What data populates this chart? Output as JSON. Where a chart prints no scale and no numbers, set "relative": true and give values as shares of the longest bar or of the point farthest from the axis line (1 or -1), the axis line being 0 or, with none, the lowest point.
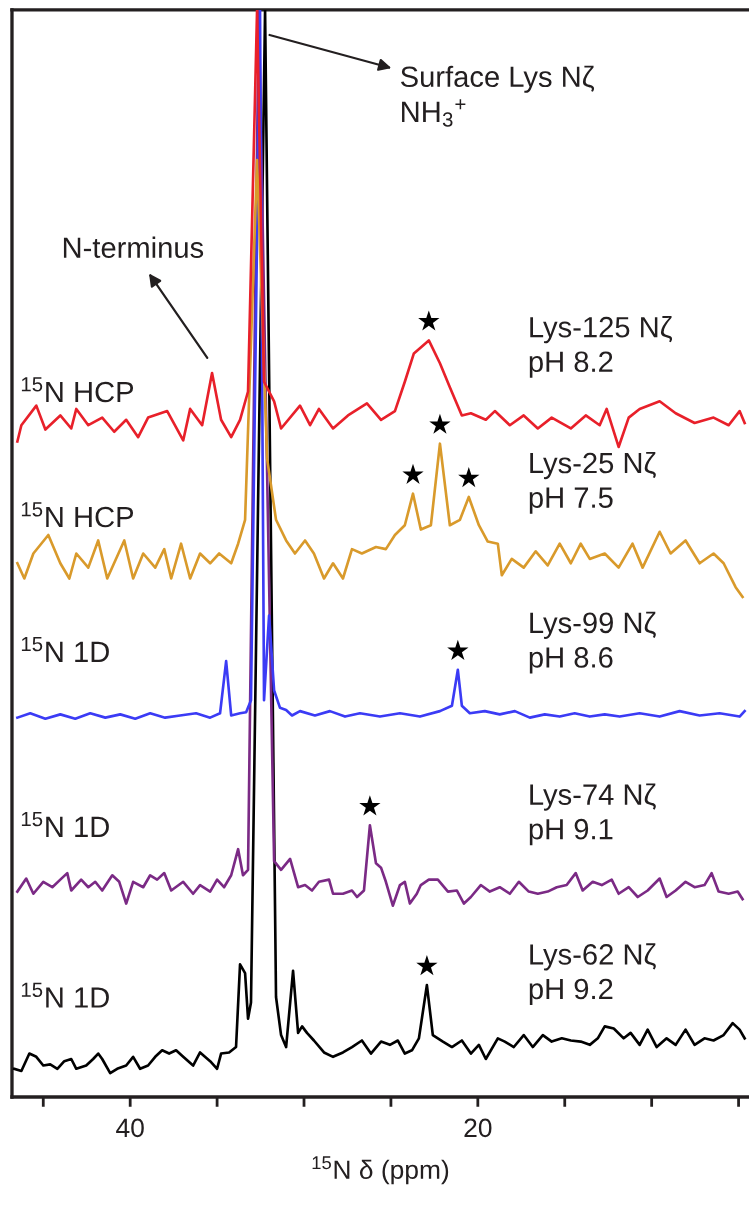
{
  "chart_data": {
    "type": "line",
    "relative": true,
    "xlabel": "$^{15}$N δ (ppm)",
    "xlim": [
      46.8,
      4.4
    ],
    "xticks": [
      {
        "value": 45,
        "label": null
      },
      40,
      {
        "value": 35,
        "label": null
      },
      {
        "value": 30,
        "label": null
      },
      {
        "value": 25,
        "label": null
      },
      20,
      {
        "value": 15,
        "label": null
      },
      {
        "value": 10,
        "label": null
      },
      {
        "value": 5,
        "label": null
      }
    ],
    "series": [
      {
        "name": "Lys-125 Nζ\npH 8.2",
        "color": "#e8202a",
        "x": [
          46.49,
          46.26,
          45.4,
          44.88,
          44.02,
          43.39,
          43.1,
          42.41,
          41.61,
          40.92,
          40.23,
          39.54,
          38.97,
          37.87,
          36.95,
          36.55,
          35.86,
          35.29,
          34.77,
          34.19,
          33.68,
          33.22,
          32.7,
          32.3,
          31.72,
          31.32,
          30.23,
          29.65,
          29.14,
          28.33,
          27.47,
          26.38,
          25.57,
          24.77,
          24.2,
          23.68,
          22.82,
          22.18,
          21.61,
          20.92,
          20.4,
          19.54,
          19.02,
          18.16,
          17.36,
          16.55,
          15.75,
          14.65,
          13.79,
          12.99,
          12.59,
          11.9,
          11.32,
          10.69,
          9.54,
          8.62,
          7.53,
          6.44,
          5.57,
          4.94,
          4.65
        ],
        "values": [
          0.603,
          0.618,
          0.636,
          0.614,
          0.627,
          0.615,
          0.633,
          0.618,
          0.625,
          0.612,
          0.623,
          0.607,
          0.625,
          0.631,
          0.604,
          0.633,
          0.618,
          0.666,
          0.623,
          0.607,
          0.623,
          0.649,
          1.0,
          0.658,
          0.64,
          0.615,
          0.636,
          0.618,
          0.633,
          0.615,
          0.627,
          0.638,
          0.623,
          0.631,
          0.658,
          0.684,
          0.696,
          0.675,
          0.653,
          0.627,
          0.629,
          0.623,
          0.631,
          0.618,
          0.627,
          0.615,
          0.625,
          0.615,
          0.627,
          0.618,
          0.633,
          0.598,
          0.625,
          0.633,
          0.64,
          0.629,
          0.62,
          0.625,
          0.618,
          0.631,
          0.62
        ]
      },
      {
        "name": "Lys-25 Nζ\npH 7.5",
        "color": "#d99a2b",
        "x": [
          46.49,
          46.09,
          45.57,
          44.71,
          44.02,
          43.5,
          43.1,
          42.41,
          41.84,
          41.32,
          40.34,
          39.83,
          39.25,
          38.56,
          38.04,
          37.64,
          37.07,
          36.55,
          35.98,
          35.4,
          34.88,
          34.19,
          33.79,
          33.39,
          32.7,
          32.12,
          31.61,
          31.03,
          30.52,
          29.94,
          29.43,
          28.85,
          28.33,
          27.76,
          27.24,
          26.67,
          25.86,
          25.29,
          24.77,
          24.2,
          23.73,
          23.28,
          22.7,
          22.18,
          21.61,
          21.03,
          20.52,
          19.94,
          19.43,
          18.85,
          18.62,
          18.05,
          17.36,
          16.67,
          15.98,
          15.29,
          14.65,
          14.08,
          13.56,
          12.7,
          11.9,
          11.1,
          10.52,
          9.54,
          8.91,
          8.05,
          7.24,
          6.44,
          5.86,
          5.17,
          4.77
        ],
        "values": [
          0.491,
          0.477,
          0.5,
          0.517,
          0.491,
          0.477,
          0.5,
          0.487,
          0.512,
          0.477,
          0.512,
          0.477,
          0.5,
          0.487,
          0.504,
          0.477,
          0.509,
          0.477,
          0.5,
          0.491,
          0.5,
          0.491,
          0.509,
          0.531,
          0.862,
          0.587,
          0.531,
          0.512,
          0.5,
          0.512,
          0.5,
          0.477,
          0.491,
          0.477,
          0.504,
          0.5,
          0.506,
          0.504,
          0.517,
          0.526,
          0.555,
          0.522,
          0.526,
          0.601,
          0.526,
          0.531,
          0.552,
          0.526,
          0.511,
          0.509,
          0.48,
          0.495,
          0.487,
          0.502,
          0.489,
          0.509,
          0.491,
          0.509,
          0.495,
          0.5,
          0.487,
          0.509,
          0.487,
          0.52,
          0.5,
          0.512,
          0.491,
          0.5,
          0.491,
          0.469,
          0.46
        ]
      },
      {
        "name": "Lys-99 Nζ\npH 8.6",
        "color": "#3b3bf5",
        "x": [
          46.49,
          45.75,
          44.88,
          44.02,
          43.16,
          42.3,
          41.43,
          40.57,
          39.71,
          38.85,
          37.99,
          37.13,
          36.21,
          35.4,
          34.83,
          34.48,
          34.19,
          33.68,
          33.33,
          33.05,
          32.53,
          32.3,
          32.01,
          31.72,
          31.38,
          31.03,
          30.69,
          30.23,
          29.37,
          28.51,
          27.64,
          26.78,
          25.63,
          24.48,
          23.33,
          22.18,
          21.49,
          21.15,
          20.92,
          20.46,
          19.6,
          18.74,
          17.87,
          17.01,
          16.15,
          15.29,
          14.43,
          13.56,
          12.7,
          11.84,
          10.69,
          9.54,
          8.39,
          7.24,
          6.09,
          4.94,
          4.65
        ],
        "values": [
          0.349,
          0.353,
          0.348,
          0.352,
          0.348,
          0.353,
          0.349,
          0.352,
          0.348,
          0.353,
          0.349,
          0.351,
          0.353,
          0.349,
          0.353,
          0.401,
          0.351,
          0.353,
          0.354,
          0.365,
          1.0,
          0.365,
          0.443,
          0.374,
          0.358,
          0.356,
          0.351,
          0.355,
          0.351,
          0.355,
          0.35,
          0.353,
          0.35,
          0.353,
          0.35,
          0.355,
          0.36,
          0.393,
          0.36,
          0.353,
          0.355,
          0.352,
          0.355,
          0.349,
          0.352,
          0.35,
          0.353,
          0.35,
          0.352,
          0.35,
          0.353,
          0.35,
          0.355,
          0.351,
          0.353,
          0.35,
          0.355
        ]
      },
      {
        "name": "Lys-74 Nζ\npH 9.1",
        "color": "#7b2a85",
        "x": [
          46.49,
          45.98,
          45.57,
          45.0,
          44.48,
          44.02,
          43.62,
          43.39,
          42.82,
          42.41,
          42.01,
          41.61,
          41.03,
          40.63,
          40.23,
          39.83,
          39.25,
          38.85,
          38.45,
          38.04,
          37.64,
          36.95,
          36.38,
          35.98,
          35.4,
          35.0,
          34.6,
          34.19,
          33.79,
          33.51,
          33.22,
          32.6,
          31.72,
          31.32,
          30.8,
          30.34,
          29.94,
          29.54,
          29.14,
          28.56,
          28.33,
          27.76,
          27.24,
          26.95,
          26.55,
          26.21,
          25.86,
          25.57,
          25.29,
          24.89,
          24.48,
          24.2,
          23.91,
          23.51,
          23.28,
          22.82,
          22.3,
          21.72,
          21.21,
          20.8,
          20.4,
          19.83,
          19.31,
          18.74,
          18.16,
          17.64,
          17.07,
          16.55,
          15.98,
          15.46,
          14.89,
          14.37,
          13.97,
          13.39,
          12.87,
          12.3,
          11.9,
          11.32,
          10.8,
          10.23,
          9.54,
          9.14,
          8.62,
          8.05,
          7.53,
          6.96,
          6.55,
          6.15,
          5.57,
          5.05,
          4.77
        ],
        "values": [
          0.189,
          0.201,
          0.187,
          0.198,
          0.193,
          0.2,
          0.206,
          0.19,
          0.2,
          0.193,
          0.198,
          0.19,
          0.204,
          0.198,
          0.178,
          0.198,
          0.193,
          0.204,
          0.2,
          0.206,
          0.19,
          0.198,
          0.187,
          0.195,
          0.189,
          0.2,
          0.193,
          0.204,
          0.228,
          0.204,
          0.209,
          1.0,
          0.217,
          0.209,
          0.219,
          0.193,
          0.195,
          0.19,
          0.198,
          0.2,
          0.187,
          0.187,
          0.19,
          0.184,
          0.19,
          0.25,
          0.215,
          0.211,
          0.198,
          0.176,
          0.195,
          0.198,
          0.178,
          0.187,
          0.195,
          0.2,
          0.2,
          0.189,
          0.19,
          0.178,
          0.184,
          0.195,
          0.189,
          0.193,
          0.187,
          0.198,
          0.189,
          0.187,
          0.189,
          0.193,
          0.195,
          0.206,
          0.19,
          0.198,
          0.195,
          0.2,
          0.187,
          0.193,
          0.184,
          0.19,
          0.201,
          0.184,
          0.19,
          0.198,
          0.193,
          0.195,
          0.206,
          0.189,
          0.187,
          0.189,
          0.182
        ]
      },
      {
        "name": "Lys-62 Nζ\npH 9.2",
        "color": "#000000",
        "x": [
          46.67,
          46.26,
          45.8,
          45.4,
          45.0,
          44.6,
          44.19,
          43.79,
          43.39,
          43.1,
          42.53,
          42.13,
          41.84,
          41.61,
          41.15,
          40.75,
          40.23,
          39.83,
          39.43,
          38.97,
          38.56,
          38.16,
          37.76,
          37.36,
          36.95,
          36.38,
          35.98,
          35.4,
          35.0,
          34.77,
          34.31,
          33.91,
          33.68,
          33.39,
          33.22,
          33.05,
          32.24,
          31.61,
          31.32,
          31.03,
          30.63,
          30.34,
          30.11,
          29.83,
          29.43,
          28.85,
          28.33,
          27.76,
          27.24,
          26.67,
          26.15,
          25.57,
          25.06,
          24.6,
          24.2,
          23.79,
          23.39,
          22.93,
          22.59,
          22.01,
          21.49,
          20.92,
          20.4,
          19.94,
          19.54,
          18.85,
          18.45,
          17.93,
          17.36,
          16.84,
          16.26,
          15.75,
          15.17,
          14.65,
          14.08,
          13.56,
          13.1,
          12.7,
          12.18,
          11.61,
          11.21,
          10.69,
          10.23,
          9.71,
          9.14,
          8.62,
          8.05,
          7.53,
          6.96,
          6.44,
          5.86,
          5.34,
          4.94,
          4.65
        ],
        "values": [
          0.026,
          0.024,
          0.04,
          0.037,
          0.029,
          0.03,
          0.026,
          0.033,
          0.035,
          0.026,
          0.029,
          0.035,
          0.04,
          0.035,
          0.022,
          0.026,
          0.029,
          0.037,
          0.026,
          0.029,
          0.037,
          0.043,
          0.04,
          0.043,
          0.037,
          0.029,
          0.041,
          0.033,
          0.026,
          0.04,
          0.041,
          0.046,
          0.122,
          0.114,
          0.072,
          0.087,
          1.0,
          0.092,
          0.057,
          0.046,
          0.116,
          0.059,
          0.065,
          0.059,
          0.052,
          0.041,
          0.037,
          0.041,
          0.046,
          0.052,
          0.04,
          0.051,
          0.048,
          0.052,
          0.04,
          0.043,
          0.054,
          0.103,
          0.057,
          0.051,
          0.046,
          0.052,
          0.04,
          0.048,
          0.035,
          0.054,
          0.051,
          0.046,
          0.057,
          0.046,
          0.057,
          0.051,
          0.054,
          0.052,
          0.051,
          0.048,
          0.054,
          0.065,
          0.063,
          0.054,
          0.059,
          0.048,
          0.062,
          0.046,
          0.054,
          0.048,
          0.062,
          0.048,
          0.054,
          0.052,
          0.057,
          0.068,
          0.062,
          0.054
        ]
      }
    ],
    "annotations": [
      {
        "text": "Surface Lys Nζ\nNH$_{3}$$^{+}$",
        "x": 31.98,
        "y": 0.977
      },
      "N-terminus",
      {
        "text": "★",
        "x": 22.82,
        "y": 0.696
      },
      {
        "text": "★",
        "x": 23.73,
        "y": 0.555
      },
      {
        "text": "★",
        "x": 22.18,
        "y": 0.601
      },
      {
        "text": "★",
        "x": 20.52,
        "y": 0.552
      },
      {
        "text": "★",
        "x": 21.15,
        "y": 0.393
      },
      {
        "text": "★",
        "x": 26.21,
        "y": 0.25
      },
      {
        "text": "★",
        "x": 22.93,
        "y": 0.103
      },
      "$^{15}$N HCP",
      "$^{15}$N HCP",
      "$^{15}$N 1D",
      "$^{15}$N 1D",
      "$^{15}$N 1D"
    ]
  }
}
